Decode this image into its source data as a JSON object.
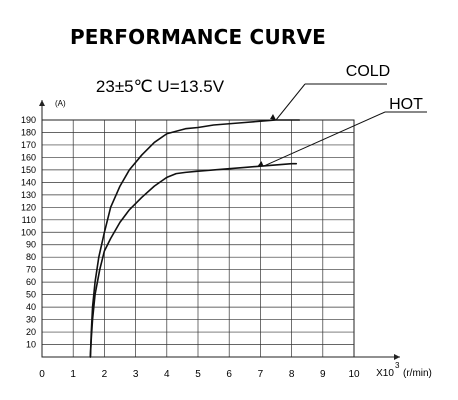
{
  "chart_data": {
    "type": "line",
    "title": "PERFORMANCE CURVE",
    "subtitle": "23±5℃   U=13.5V",
    "ylabel": "(A)",
    "xlabel_prefix": "X10",
    "xlabel_exponent": "3",
    "xlabel_unit": "(r/min)",
    "ylim": [
      0,
      190
    ],
    "xlim": [
      0,
      10
    ],
    "y_ticks": [
      "10",
      "20",
      "30",
      "40",
      "50",
      "60",
      "70",
      "80",
      "90",
      "100",
      "110",
      "120",
      "130",
      "140",
      "150",
      "160",
      "170",
      "180",
      "190"
    ],
    "x_ticks": [
      "0",
      "1",
      "2",
      "3",
      "4",
      "5",
      "6",
      "7",
      "8",
      "9",
      "10"
    ],
    "grid": true,
    "series": [
      {
        "name": "COLD",
        "x": [
          1.55,
          1.58,
          1.62,
          1.7,
          1.82,
          2.0,
          2.2,
          2.5,
          2.8,
          3.2,
          3.6,
          4.0,
          4.3,
          4.6,
          5.0,
          5.5,
          6.0,
          6.5,
          7.0,
          7.5,
          8.0,
          8.25
        ],
        "values": [
          0,
          20,
          40,
          60,
          80,
          100,
          120,
          137,
          150,
          162,
          172,
          179,
          181,
          183,
          184,
          186,
          187,
          188,
          189,
          190,
          190,
          190
        ]
      },
      {
        "name": "HOT",
        "x": [
          1.55,
          1.58,
          1.62,
          1.7,
          1.85,
          2.0,
          2.2,
          2.5,
          2.8,
          3.2,
          3.6,
          4.0,
          4.3,
          4.6,
          5.0,
          5.5,
          6.0,
          6.5,
          7.0,
          7.5,
          8.0,
          8.15
        ],
        "values": [
          0,
          15,
          30,
          50,
          70,
          85,
          95,
          108,
          118,
          128,
          137,
          144,
          147,
          148,
          149,
          150,
          151,
          152,
          153,
          154,
          155,
          155
        ]
      }
    ]
  }
}
